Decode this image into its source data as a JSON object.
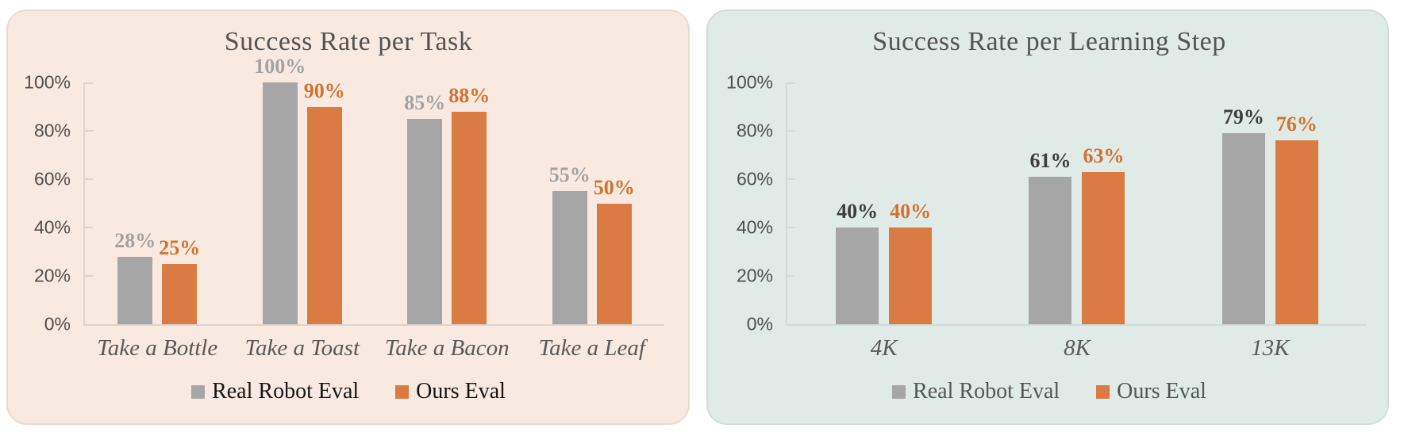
{
  "chart_data": [
    {
      "type": "bar",
      "title": "Success Rate per Task",
      "categories": [
        "Take a Bottle",
        "Take a Toast",
        "Take a Bacon",
        "Take a Leaf"
      ],
      "series": [
        {
          "name": "Real Robot Eval",
          "values": [
            28,
            100,
            85,
            55
          ]
        },
        {
          "name": "Ours Eval",
          "values": [
            25,
            90,
            88,
            50
          ]
        }
      ],
      "data_labels": [
        "28%",
        "100%",
        "85%",
        "55%",
        "25%",
        "90%",
        "88%",
        "50%"
      ],
      "value_suffix": "%",
      "ylim": [
        0,
        100
      ],
      "yticks": [
        0,
        20,
        40,
        60,
        80,
        100
      ],
      "ytick_labels": [
        "0%",
        "20%",
        "40%",
        "60%",
        "80%",
        "100%"
      ],
      "grid": false,
      "legend_position": "bottom",
      "series_colors": [
        "#A6A6A6",
        "#D97B42"
      ],
      "data_label_colors": [
        "#A2A2A2",
        "#D2722F"
      ],
      "panel_background": "#F9EAE1",
      "title_color": "#545454",
      "axis_text_color": "#4F4F4F",
      "category_text_color": "#595959",
      "legend_text_color": "#161616"
    },
    {
      "type": "bar",
      "title": "Success Rate per Learning Step",
      "categories": [
        "4K",
        "8K",
        "13K"
      ],
      "series": [
        {
          "name": "Real Robot Eval",
          "values": [
            40,
            61,
            79
          ]
        },
        {
          "name": "Ours Eval",
          "values": [
            40,
            63,
            76
          ]
        }
      ],
      "data_labels": [
        "40%",
        "61%",
        "79%",
        "40%",
        "63%",
        "76%"
      ],
      "value_suffix": "%",
      "ylim": [
        0,
        100
      ],
      "yticks": [
        0,
        20,
        40,
        60,
        80,
        100
      ],
      "ytick_labels": [
        "0%",
        "20%",
        "40%",
        "60%",
        "80%",
        "100%"
      ],
      "grid": false,
      "legend_position": "bottom",
      "series_colors": [
        "#A6A6A6",
        "#D97B42"
      ],
      "data_label_colors": [
        "#3D3D3D",
        "#D2722F"
      ],
      "panel_background": "#E0EAE7",
      "title_color": "#545454",
      "axis_text_color": "#4F4F4F",
      "category_text_color": "#595959",
      "legend_text_color": "#565656"
    }
  ]
}
